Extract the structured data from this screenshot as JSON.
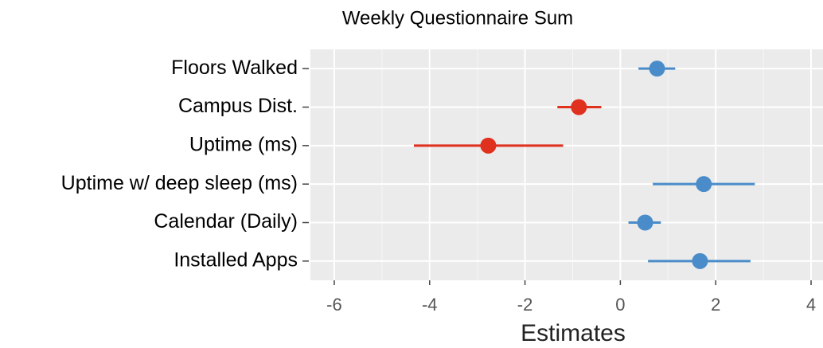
{
  "chart_data": {
    "type": "forest",
    "title": "Weekly Questionnaire Sum",
    "x_label": "Estimates",
    "categories": [
      "Floors Walked",
      "Campus Dist.",
      "Uptime (ms)",
      "Uptime w/ deep sleep (ms)",
      "Calendar (Daily)",
      "Installed Apps"
    ],
    "values": [
      0.77,
      -0.87,
      -2.77,
      1.75,
      0.52,
      1.67
    ],
    "lower": [
      0.38,
      -1.32,
      -4.33,
      0.68,
      0.17,
      0.58
    ],
    "upper": [
      1.15,
      -0.4,
      -1.2,
      2.82,
      0.85,
      2.73
    ],
    "colors": [
      "#4a8cca",
      "#e0301e",
      "#e0301e",
      "#4a8cca",
      "#4a8cca",
      "#4a8cca"
    ],
    "xlim": [
      -6.5,
      4.25
    ],
    "xticks": [
      -6,
      -4,
      -2,
      0,
      2,
      4
    ],
    "xminor": [
      -5,
      -3,
      -1,
      1,
      3
    ],
    "grid": true
  }
}
